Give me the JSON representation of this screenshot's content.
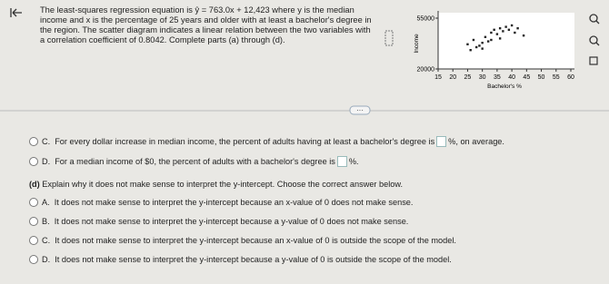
{
  "header": {
    "intro": "The least-squares regression equation is ŷ = 763.0x + 12,423 where y is the median income and x is the percentage of 25 years and older with at least a bachelor's degree in the region. The scatter diagram indicates a linear relation between the two variables with a correlation coefficient of 0.8042. Complete parts (a) through (d)."
  },
  "figure": {
    "type": "scatter",
    "x_label": "Bachelor's %",
    "y_label": "Income",
    "xlim": [
      15,
      60
    ],
    "ylim": [
      20000,
      55000
    ],
    "xticks": [
      15,
      20,
      25,
      30,
      35,
      40,
      45,
      50,
      55,
      60
    ],
    "yticks": [
      20000,
      55000
    ],
    "x": [
      25,
      27,
      28,
      30,
      31,
      32,
      33,
      34,
      35,
      36,
      37,
      38,
      39,
      40,
      41,
      42,
      26,
      29,
      30,
      44,
      36,
      33
    ],
    "y": [
      37000,
      40000,
      35000,
      38000,
      42000,
      39000,
      45000,
      47000,
      44000,
      48000,
      46000,
      49000,
      47000,
      50000,
      45000,
      48000,
      33000,
      36000,
      34000,
      43000,
      41000,
      40000
    ]
  },
  "part_c_options": [
    {
      "letter": "C.",
      "text": "For every dollar increase in median income, the percent of adults having at least a bachelor's degree is",
      "suffix": "%, on average."
    },
    {
      "letter": "D.",
      "text": "For a median income of $0, the percent of adults with a bachelor's degree is",
      "suffix": "%."
    }
  ],
  "part_d": {
    "label": "(d)",
    "question": "Explain why it does not make sense to interpret the y-intercept. Choose the correct answer below.",
    "options": [
      {
        "letter": "A.",
        "text": "It does not make sense to interpret the y-intercept because an x-value of 0 does not make sense."
      },
      {
        "letter": "B.",
        "text": "It does not make sense to interpret the y-intercept because a y-value of 0 does not make sense."
      },
      {
        "letter": "C.",
        "text": "It does not make sense to interpret the y-intercept because an x-value of 0 is outside the scope of the model."
      },
      {
        "letter": "D.",
        "text": "It does not make sense to interpret the y-intercept because a y-value of 0 is outside the scope of the model."
      }
    ]
  }
}
